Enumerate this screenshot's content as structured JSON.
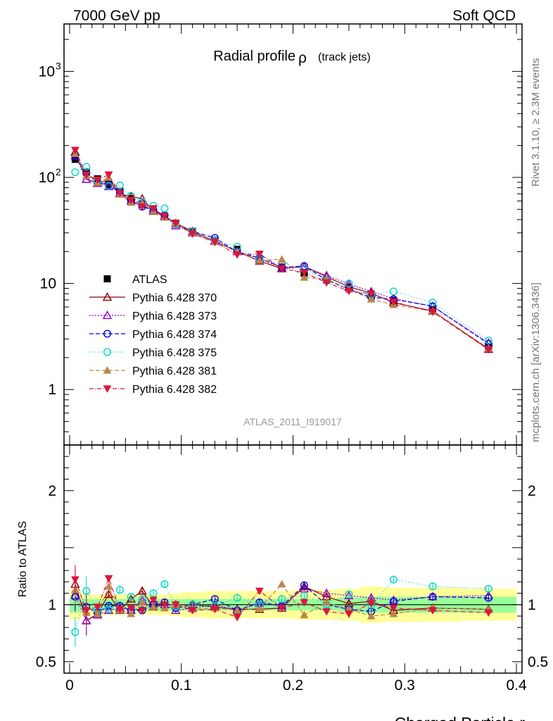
{
  "header": {
    "left": "7000 GeV pp",
    "right": "Soft QCD"
  },
  "side": {
    "top": "Rivet 3.1.10, ≥ 2.3M events",
    "bottom": "mcplots.cern.ch [arXiv:1306.3436]"
  },
  "colors": {
    "frame": "#000000",
    "band_yellow": "#ffff99",
    "band_green": "#99ff99",
    "side_text": "#777777",
    "analysis_text": "#999999"
  },
  "chart_data": [
    {
      "panel": "main",
      "type": "scatter",
      "title": "Radial profile",
      "title_symbol": "ρ",
      "title_note": "(track jets)",
      "watermark": "ATLAS_2011_I919017",
      "yscale": "log",
      "ylim": [
        0.3,
        2800
      ],
      "xlim": [
        -0.005,
        0.405
      ],
      "yticks": [
        {
          "v": 1000,
          "base": "10",
          "exp": "3"
        },
        {
          "v": 100,
          "base": "10",
          "exp": "2"
        },
        {
          "v": 10,
          "base": "10",
          "exp": ""
        },
        {
          "v": 1,
          "base": "1",
          "exp": ""
        }
      ],
      "legend_position": "middle-left",
      "x": [
        0.005,
        0.015,
        0.025,
        0.035,
        0.045,
        0.055,
        0.065,
        0.075,
        0.085,
        0.095,
        0.11,
        0.13,
        0.15,
        0.17,
        0.19,
        0.21,
        0.23,
        0.25,
        0.27,
        0.29,
        0.325,
        0.375
      ],
      "series": [
        {
          "name": "ATLAS",
          "color": "#000000",
          "marker": "square",
          "dash": "",
          "values": [
            148,
            112,
            97,
            86,
            74,
            63,
            56,
            49,
            43,
            37,
            31,
            25.5,
            21,
            17,
            14.3,
            12.5,
            10.8,
            9.2,
            7.9,
            6.9,
            5.7,
            2.55
          ],
          "errors": [
            10,
            6,
            5,
            4,
            4,
            3,
            3,
            2.5,
            2,
            2,
            1.5,
            1.2,
            1,
            0.8,
            0.7,
            0.6,
            0.5,
            0.5,
            0.4,
            0.4,
            0.3,
            0.15
          ]
        },
        {
          "name": "Pythia 6.428 370",
          "color": "#8b0000",
          "marker": "triangle-up-open",
          "dash": "",
          "values": [
            174,
            96,
            89,
            94,
            70,
            66,
            63,
            48,
            43,
            37,
            31,
            25,
            20,
            16.3,
            13.8,
            14.5,
            11.6,
            9.3,
            8.1,
            6.6,
            5.5,
            2.4
          ],
          "ratio": [
            1.18,
            0.86,
            0.92,
            1.09,
            0.95,
            1.05,
            1.12,
            0.98,
            1.0,
            1.0,
            1.0,
            0.98,
            0.96,
            0.96,
            0.97,
            1.16,
            1.07,
            1.01,
            1.03,
            0.95,
            0.97,
            0.96
          ]
        },
        {
          "name": "Pythia 6.428 373",
          "color": "#9400d3",
          "marker": "triangle-up-open",
          "dash": "2,2",
          "values": [
            160,
            96,
            88,
            82,
            72,
            60,
            58,
            50,
            43,
            35,
            30,
            25.5,
            20,
            17.1,
            14.1,
            14.3,
            11.9,
            9.9,
            8.4,
            7.2,
            6.1,
            2.75
          ],
          "ratio": [
            1.08,
            0.86,
            0.91,
            0.95,
            0.97,
            0.95,
            1.04,
            1.02,
            1.0,
            0.95,
            0.97,
            1.0,
            0.95,
            1.01,
            0.99,
            1.14,
            1.1,
            1.08,
            1.06,
            1.04,
            1.07,
            1.08
          ]
        },
        {
          "name": "Pythia 6.428 374",
          "color": "#0000dd",
          "marker": "circle-open",
          "dash": "6,3",
          "values": [
            158,
            110,
            90,
            85,
            73,
            60,
            53,
            49,
            44,
            36,
            31,
            26.9,
            19.9,
            17.4,
            14.2,
            14.6,
            10.8,
            8.8,
            7.4,
            7.1,
            6.1,
            2.7
          ],
          "ratio": [
            1.07,
            0.98,
            0.93,
            0.99,
            0.99,
            0.95,
            0.95,
            1.0,
            1.02,
            0.97,
            1.0,
            1.05,
            0.95,
            1.02,
            0.99,
            1.17,
            1.0,
            0.96,
            0.94,
            1.03,
            1.07,
            1.06
          ]
        },
        {
          "name": "Pythia 6.428 375",
          "color": "#00d4c8",
          "marker": "circle-open",
          "dash": "1,3",
          "values": [
            112,
            126,
            93,
            83,
            84,
            67,
            59,
            54,
            51,
            36,
            31,
            25.3,
            22.2,
            17,
            15.1,
            13.6,
            10.8,
            10,
            7.9,
            8.4,
            6.6,
            2.9
          ],
          "ratio": [
            0.76,
            1.12,
            0.96,
            0.96,
            1.13,
            1.07,
            1.05,
            1.1,
            1.18,
            0.98,
            1.0,
            0.99,
            1.06,
            1.0,
            1.05,
            1.08,
            1.0,
            1.09,
            1.0,
            1.22,
            1.16,
            1.14
          ]
        },
        {
          "name": "Pythia 6.428 381",
          "color": "#b8864b",
          "marker": "triangle-up-filled",
          "dash": "6,3",
          "values": [
            167,
            104,
            89,
            100,
            70,
            58,
            57,
            48,
            42,
            37,
            30,
            24.7,
            20,
            16.5,
            16.9,
            11.4,
            11,
            8.8,
            7.1,
            6.3,
            5.5,
            2.45
          ],
          "ratio": [
            1.13,
            0.93,
            0.92,
            1.16,
            0.95,
            0.92,
            1.02,
            0.98,
            0.97,
            1.0,
            0.96,
            0.97,
            0.95,
            0.97,
            1.18,
            0.91,
            1.02,
            0.96,
            0.9,
            0.92,
            0.97,
            0.96
          ]
        },
        {
          "name": "Pythia 6.428 382",
          "color": "#dc143c",
          "marker": "triangle-down-filled",
          "dash": "6,2,1,2",
          "values": [
            181,
            106,
            95,
            106,
            71,
            61,
            53,
            51,
            43,
            37,
            29.4,
            24.5,
            18.7,
            19,
            13.8,
            12.7,
            10.2,
            8.5,
            8,
            6.7,
            5.4,
            2.38
          ],
          "ratio": [
            1.22,
            0.95,
            0.98,
            1.23,
            0.96,
            0.97,
            0.95,
            1.04,
            1.0,
            1.0,
            0.95,
            0.96,
            0.89,
            1.12,
            0.97,
            1.02,
            0.94,
            0.92,
            1.01,
            0.97,
            0.95,
            0.93
          ]
        }
      ]
    },
    {
      "panel": "ratio",
      "type": "scatter",
      "ylabel": "Ratio to ATLAS",
      "xlabel": "Charged Particle r",
      "ylim": [
        0.4,
        2.4
      ],
      "yticks": [
        {
          "v": 2,
          "label": "2"
        },
        {
          "v": 1,
          "label": "1"
        },
        {
          "v": 0.5,
          "label": "0.5"
        }
      ],
      "xticks": [
        {
          "v": 0,
          "label": "0"
        },
        {
          "v": 0.1,
          "label": "0.1"
        },
        {
          "v": 0.2,
          "label": "0.2"
        },
        {
          "v": 0.3,
          "label": "0.3"
        },
        {
          "v": 0.4,
          "label": "0.4"
        }
      ],
      "band_edges": [
        0,
        0.01,
        0.02,
        0.03,
        0.04,
        0.05,
        0.06,
        0.07,
        0.08,
        0.09,
        0.1,
        0.12,
        0.14,
        0.16,
        0.18,
        0.2,
        0.22,
        0.24,
        0.26,
        0.28,
        0.3,
        0.35,
        0.4
      ],
      "band_outer": [
        0.13,
        0.1,
        0.09,
        0.09,
        0.09,
        0.09,
        0.09,
        0.09,
        0.09,
        0.1,
        0.11,
        0.12,
        0.12,
        0.12,
        0.12,
        0.13,
        0.13,
        0.14,
        0.16,
        0.15,
        0.15,
        0.14
      ],
      "band_inner": [
        0.07,
        0.05,
        0.05,
        0.05,
        0.05,
        0.05,
        0.05,
        0.05,
        0.05,
        0.05,
        0.05,
        0.05,
        0.05,
        0.05,
        0.05,
        0.05,
        0.05,
        0.06,
        0.07,
        0.07,
        0.07,
        0.07
      ]
    }
  ]
}
